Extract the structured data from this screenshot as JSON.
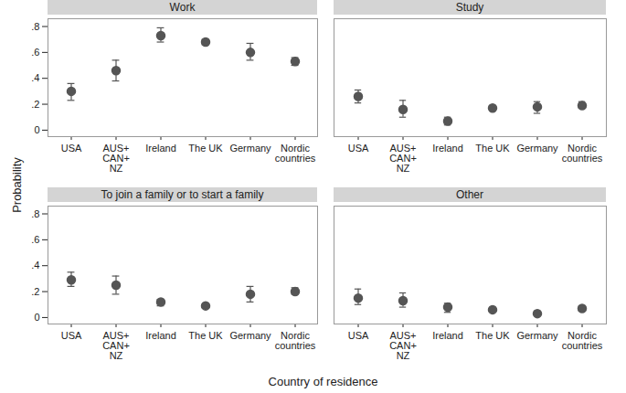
{
  "chart_data": {
    "type": "scatter",
    "x_label": "Country of residence",
    "y_label": "Probability",
    "categories": [
      "USA",
      "AUS+\nCAN+\nNZ",
      "Ireland",
      "The UK",
      "Germany",
      "Nordic\ncountries"
    ],
    "ylim": [
      -0.05,
      0.86
    ],
    "yticks": [
      0,
      {
        "value": 0.2,
        "label": ".2"
      },
      {
        "value": 0.4,
        "label": ".4"
      },
      {
        "value": 0.6,
        "label": ".6"
      },
      {
        "value": 0.8,
        "label": ".8"
      }
    ],
    "color": "#555555",
    "marker": "circle",
    "panels": [
      {
        "title": "Work",
        "values": [
          0.3,
          0.46,
          0.73,
          0.68,
          0.6,
          0.53
        ],
        "error_low": [
          0.23,
          0.38,
          0.68,
          0.66,
          0.54,
          0.5
        ],
        "error_high": [
          0.36,
          0.54,
          0.79,
          0.7,
          0.67,
          0.56
        ]
      },
      {
        "title": "Study",
        "values": [
          0.26,
          0.16,
          0.07,
          0.17,
          0.18,
          0.19
        ],
        "error_low": [
          0.21,
          0.1,
          0.04,
          0.16,
          0.13,
          0.17
        ],
        "error_high": [
          0.31,
          0.23,
          0.1,
          0.19,
          0.22,
          0.22
        ]
      },
      {
        "title": "To join a family or to start a family",
        "values": [
          0.29,
          0.25,
          0.12,
          0.09,
          0.18,
          0.2
        ],
        "error_low": [
          0.24,
          0.18,
          0.09,
          0.08,
          0.12,
          0.18
        ],
        "error_high": [
          0.35,
          0.32,
          0.14,
          0.1,
          0.24,
          0.23
        ]
      },
      {
        "title": "Other",
        "values": [
          0.15,
          0.13,
          0.08,
          0.06,
          0.03,
          0.07
        ],
        "error_low": [
          0.1,
          0.08,
          0.04,
          0.05,
          0.02,
          0.05
        ],
        "error_high": [
          0.22,
          0.19,
          0.11,
          0.07,
          0.05,
          0.09
        ]
      }
    ]
  }
}
